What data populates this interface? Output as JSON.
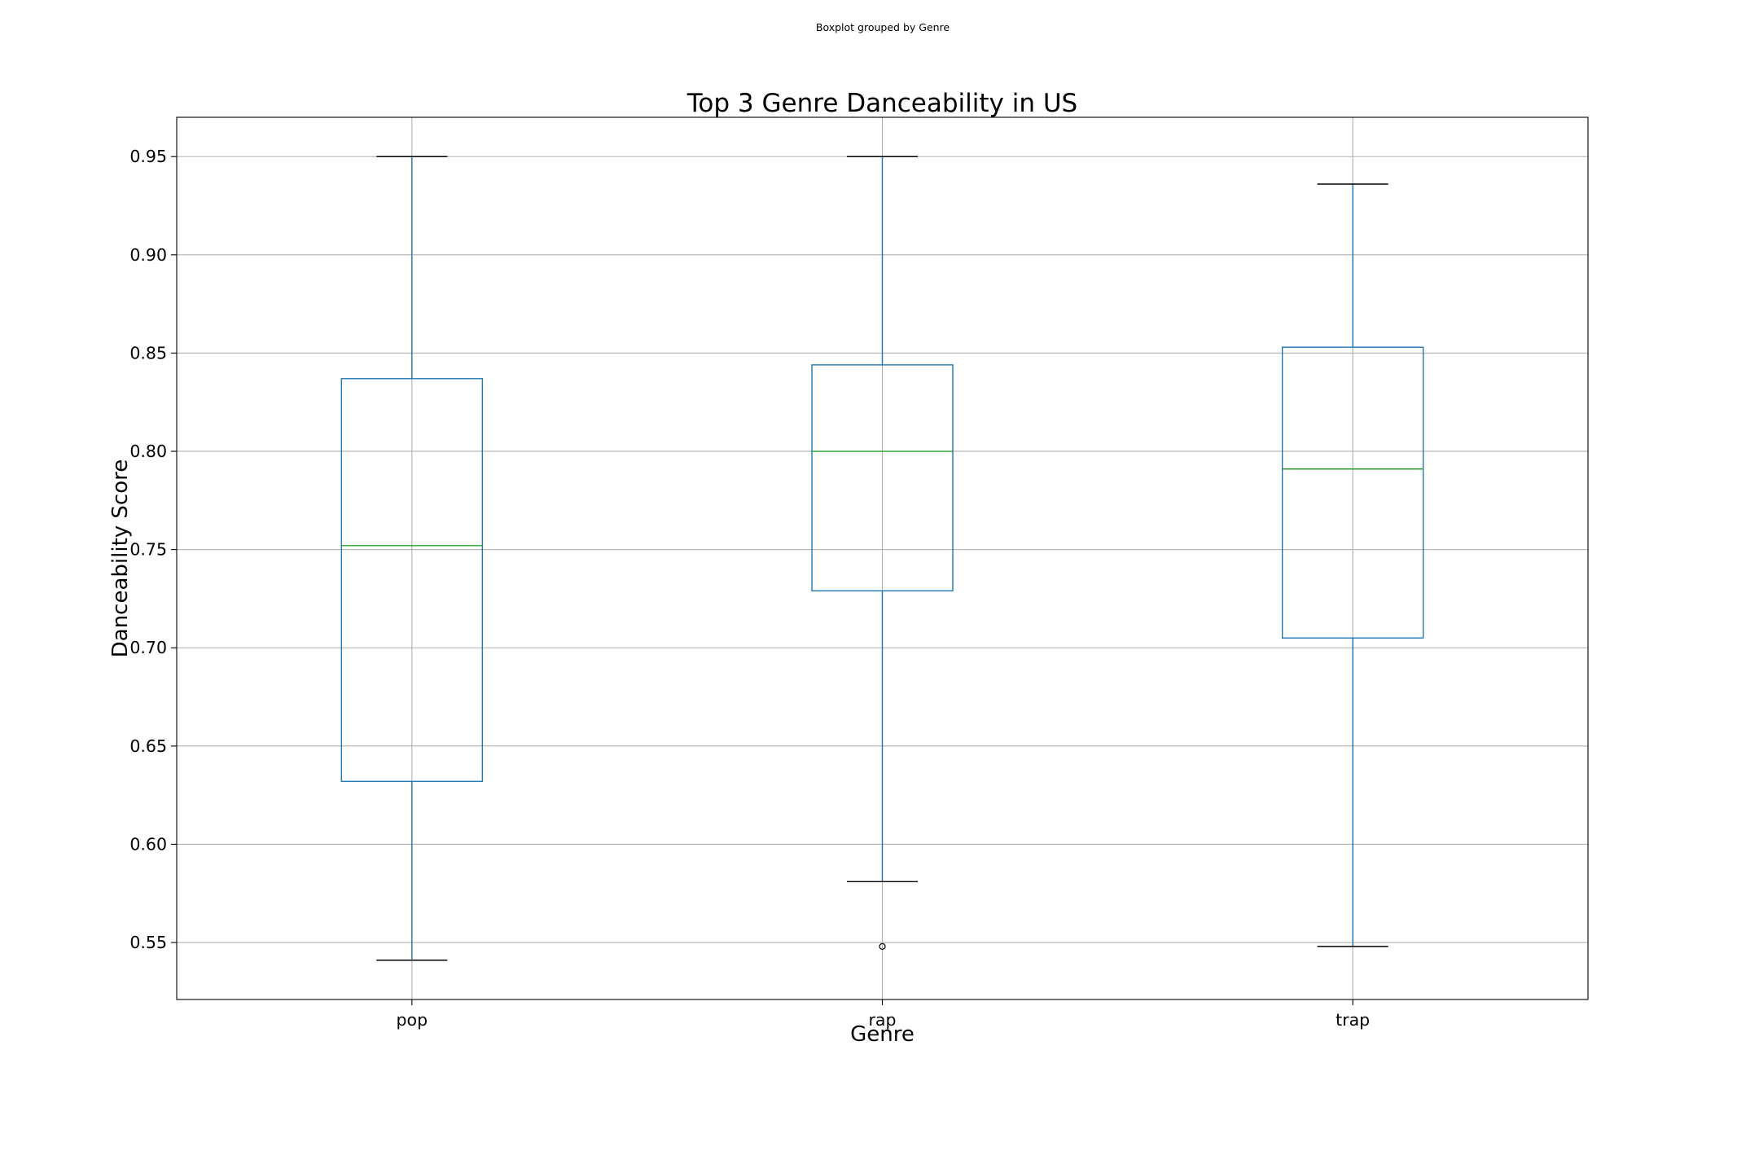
{
  "figure": {
    "suptitle": "Boxplot grouped by Genre"
  },
  "chart_data": {
    "type": "box",
    "title": "Top 3 Genre Danceability in US",
    "xlabel": "Genre",
    "ylabel": "Danceability Score",
    "ylim": [
      0.521,
      0.97
    ],
    "yticks": [
      0.55,
      0.6,
      0.65,
      0.7,
      0.75,
      0.8,
      0.85,
      0.9,
      0.95
    ],
    "ytick_labels": [
      "0.55",
      "0.60",
      "0.65",
      "0.70",
      "0.75",
      "0.80",
      "0.85",
      "0.90",
      "0.95"
    ],
    "grid": true,
    "box_color": "#1f77b4",
    "median_color": "#2ca02c",
    "cap_color": "#000000",
    "categories": [
      "pop",
      "rap",
      "trap"
    ],
    "boxes": [
      {
        "label": "pop",
        "whisker_low": 0.541,
        "q1": 0.632,
        "median": 0.752,
        "q3": 0.837,
        "whisker_high": 0.95,
        "outliers": []
      },
      {
        "label": "rap",
        "whisker_low": 0.581,
        "q1": 0.729,
        "median": 0.8,
        "q3": 0.844,
        "whisker_high": 0.95,
        "outliers": [
          0.548
        ]
      },
      {
        "label": "trap",
        "whisker_low": 0.548,
        "q1": 0.705,
        "median": 0.791,
        "q3": 0.853,
        "whisker_high": 0.936,
        "outliers": []
      }
    ]
  }
}
